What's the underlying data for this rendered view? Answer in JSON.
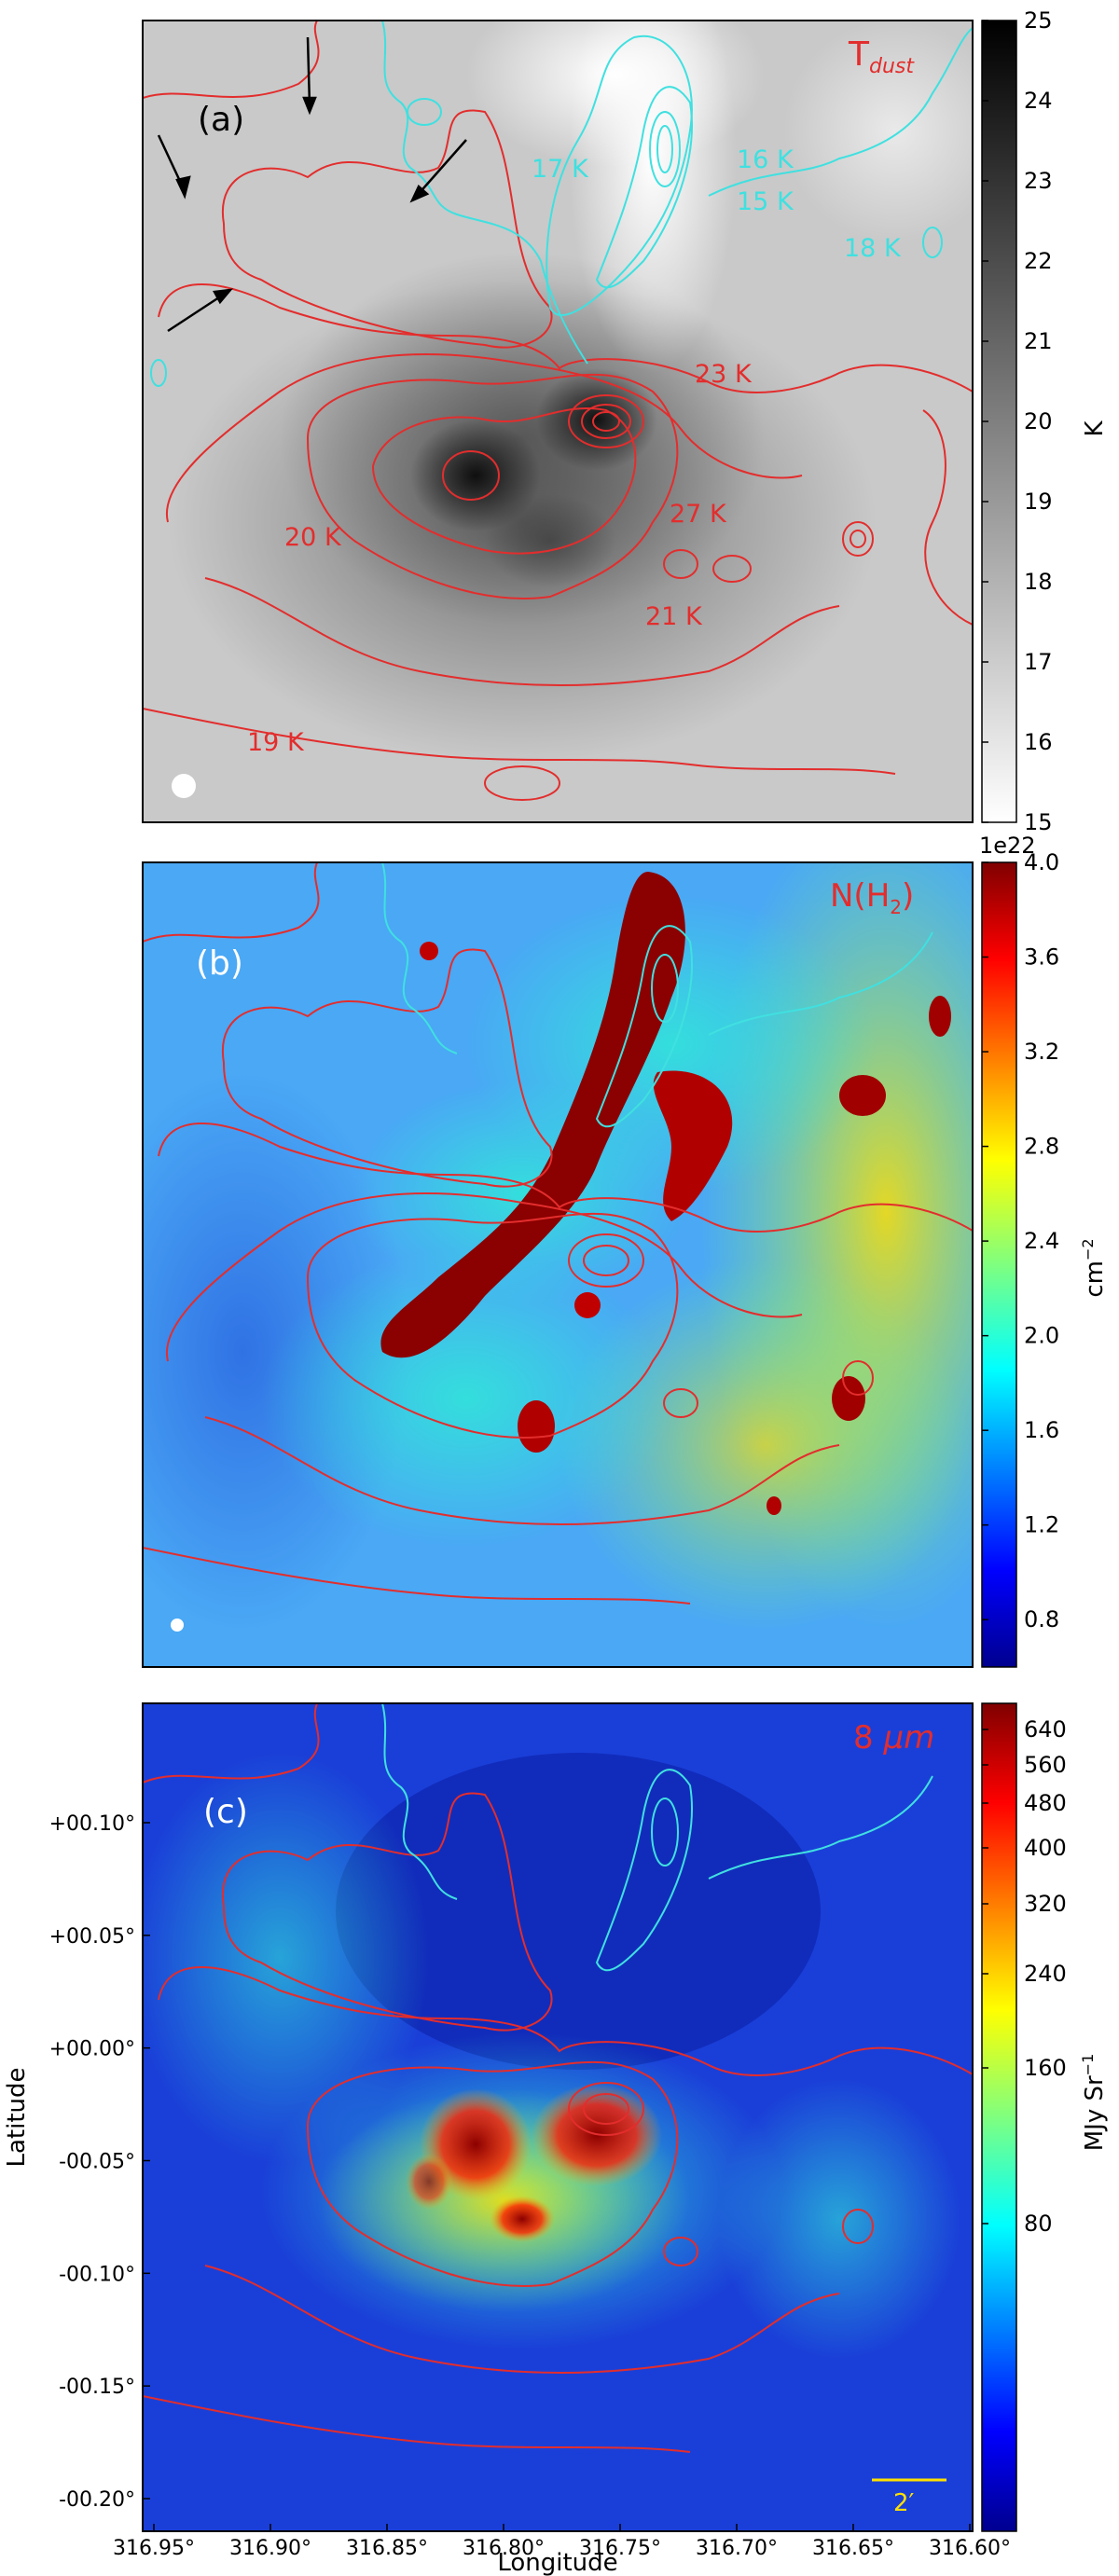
{
  "figure": {
    "xlabel": "Longitude",
    "ylabel": "Latitude",
    "x_ticks": [
      "316.95°",
      "316.90°",
      "316.85°",
      "316.80°",
      "316.75°",
      "316.70°",
      "316.65°",
      "316.60°"
    ],
    "y_ticks": [
      "+00.10°",
      "+00.05°",
      "+00.00°",
      "-00.05°",
      "-00.10°",
      "-00.15°",
      "-00.20°"
    ]
  },
  "chart_data": [
    {
      "panel": "(a)",
      "type": "heatmap",
      "title": "T_dust",
      "title_main": "T",
      "title_sub": "dust",
      "colormap": "gray_r",
      "colorbar": {
        "label": "K",
        "ticks": [
          "15",
          "16",
          "17",
          "18",
          "19",
          "20",
          "21",
          "22",
          "23",
          "24",
          "25"
        ],
        "vmin": 15,
        "vmax": 25
      },
      "contour_labels_red": [
        "23 K",
        "27 K",
        "20 K",
        "21 K",
        "19 K"
      ],
      "contour_labels_cyan": [
        "17 K",
        "16 K",
        "15 K",
        "18 K"
      ],
      "contour_colors": {
        "warm": "#e32d2d",
        "cold": "#40e0e0"
      },
      "arrows": 4
    },
    {
      "panel": "(b)",
      "type": "heatmap",
      "title": "N(H2)",
      "title_main": "N(H",
      "title_sub": "2",
      "title_end": ")",
      "colormap": "jet",
      "colorbar": {
        "label": "cm",
        "label_sup": "−2",
        "exponent": "1e22",
        "ticks": [
          "4.0",
          "3.6",
          "3.2",
          "2.8",
          "2.4",
          "2.0",
          "1.6",
          "1.2",
          "0.8"
        ],
        "vmin": 0.6,
        "vmax": 4.0
      }
    },
    {
      "panel": "(c)",
      "type": "heatmap",
      "title": "8 μm",
      "title_main": "8 ",
      "title_unit": "μm",
      "colormap": "jet",
      "colorbar": {
        "label": "MJy Sr",
        "label_sup": "−1",
        "ticks": [
          "640",
          "560",
          "480",
          "400",
          "320",
          "240",
          "160",
          "80"
        ]
      },
      "scalebar": "2′"
    }
  ]
}
